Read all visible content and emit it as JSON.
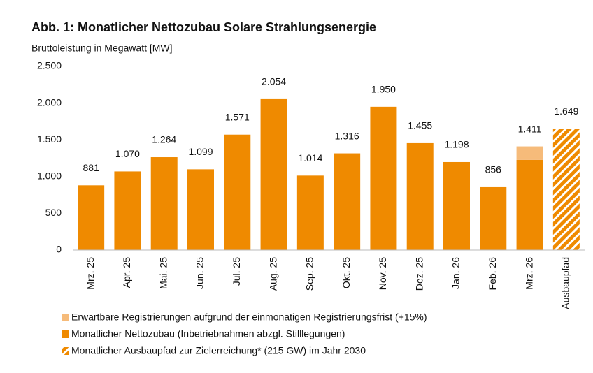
{
  "chart_data": {
    "type": "bar",
    "title": "Abb. 1: Monatlicher Nettozubau Solare Strahlungsenergie",
    "subtitle": "Bruttoleistung in Megawatt [MW]",
    "categories": [
      "Mrz. 25",
      "Apr. 25",
      "Mai. 25",
      "Jun. 25",
      "Jul. 25",
      "Aug. 25",
      "Sep. 25",
      "Okt. 25",
      "Nov. 25",
      "Dez. 25",
      "Jan. 26",
      "Feb. 26",
      "Mrz. 26",
      "Ausbaupfad"
    ],
    "series": [
      {
        "name": "Erwartbare Registrierungen aufgrund der einmonatigen Registrierungsfrist (+15%)",
        "color": "#f6bb7a",
        "pattern": "solid",
        "values": [
          null,
          null,
          null,
          null,
          null,
          null,
          null,
          null,
          null,
          null,
          null,
          null,
          184,
          null
        ]
      },
      {
        "name": "Monatlicher Nettozubau (Inbetriebnahmen abzgl. Stilllegungen)",
        "color": "#ef8a00",
        "pattern": "solid",
        "values": [
          881,
          1070,
          1264,
          1099,
          1571,
          2054,
          1014,
          1316,
          1950,
          1455,
          1198,
          856,
          1227,
          null
        ]
      },
      {
        "name": "Monatlicher Ausbaupfad zur Zielerreichung* (215 GW) im Jahr 2030",
        "color": "#ef8a00",
        "pattern": "hatch",
        "values": [
          null,
          null,
          null,
          null,
          null,
          null,
          null,
          null,
          null,
          null,
          null,
          null,
          null,
          1649
        ]
      }
    ],
    "stack_order": [
      1,
      0,
      2
    ],
    "totals": [
      881,
      1070,
      1264,
      1099,
      1571,
      2054,
      1014,
      1316,
      1950,
      1455,
      1198,
      856,
      1411,
      1649
    ],
    "total_labels": [
      "881",
      "1.070",
      "1.264",
      "1.099",
      "1.571",
      "2.054",
      "1.014",
      "1.316",
      "1.950",
      "1.455",
      "1.198",
      "856",
      "1.411",
      "1.649"
    ],
    "ylim": [
      0,
      2500
    ],
    "yticks": [
      0,
      500,
      {
        "value": 1000,
        "label": "1.000"
      },
      {
        "value": 1500,
        "label": "1.500"
      },
      {
        "value": 2000,
        "label": "2.000"
      },
      {
        "value": 2500,
        "label": "2.500"
      }
    ],
    "grid": false
  }
}
